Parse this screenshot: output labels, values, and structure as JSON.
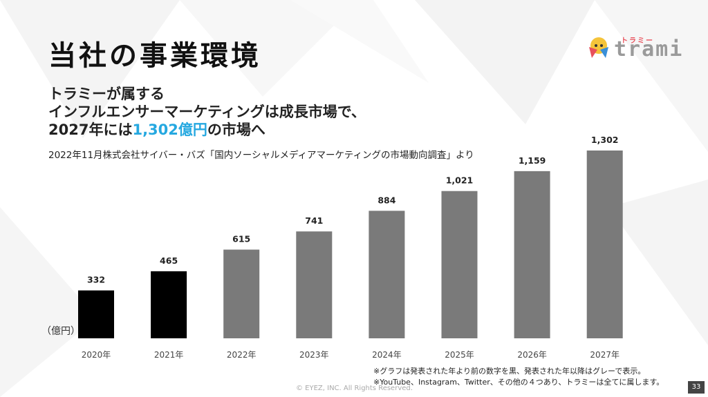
{
  "slide": {
    "title": "当社の事業環境",
    "subtitle_line1": "トラミーが属する",
    "subtitle_line2": "インフルエンサーマーケティングは成長市場で、",
    "subtitle_line3_pre": "2027年には",
    "subtitle_line3_highlight": "1,302億円",
    "subtitle_line3_post": "の市場へ",
    "source": "2022年11月株式会社サイバー・バズ「国内ソーシャルメディアマーケティングの市場動向調査」より",
    "note1": "※グラフは発表された年より前の数字を黒、発表された年以降はグレーで表示。",
    "note2": "※YouTube、Instagram、Twitter、その他の４つあり、トラミーは全てに属します。",
    "copyright": "© EYEZ, INC. All Rights Reserved.",
    "page_number": "33",
    "highlight_color": "#25a8e0"
  },
  "logo": {
    "kana": "トラミー",
    "word": "trami"
  },
  "chart_data": {
    "type": "bar",
    "title": "",
    "ylabel": "（億円）",
    "xlabel": "",
    "categories": [
      "2020年",
      "2021年",
      "2022年",
      "2023年",
      "2024年",
      "2025年",
      "2026年",
      "2027年"
    ],
    "values": [
      332,
      465,
      615,
      741,
      884,
      1021,
      1159,
      1302
    ],
    "value_labels": [
      "332",
      "465",
      "615",
      "741",
      "884",
      "1,021",
      "1,159",
      "1,302"
    ],
    "actual_color": "#000000",
    "forecast_color": "#7a7a7a",
    "actual_count": 2,
    "ylim": [
      0,
      1302
    ]
  }
}
